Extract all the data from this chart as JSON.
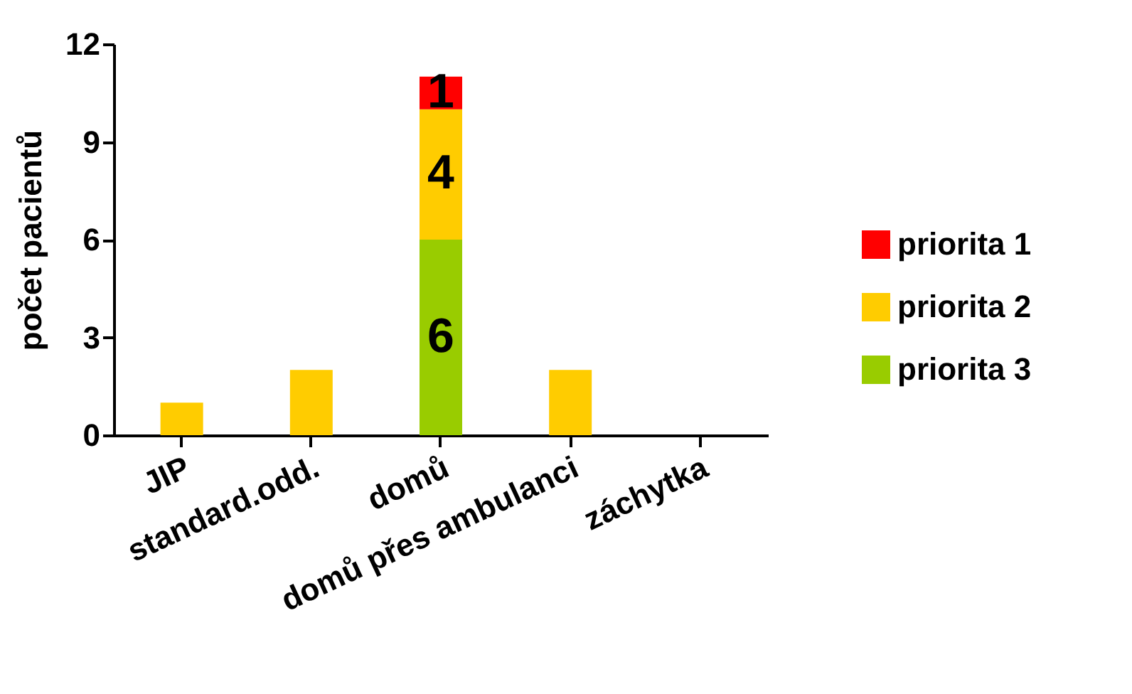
{
  "chart_data": {
    "type": "bar",
    "stacked": true,
    "ylabel": "počet pacientů",
    "categories": [
      "JIP",
      "standard.odd.",
      "domů",
      "domů přes ambulanci",
      "záchytka"
    ],
    "series": [
      {
        "name": "priorita 3",
        "color": "#99cc00",
        "values": [
          null,
          null,
          6,
          null,
          0
        ],
        "value_labels": [
          null,
          null,
          "6",
          null,
          null
        ]
      },
      {
        "name": "priorita 2",
        "color": "#ffcc00",
        "values": [
          1,
          2,
          4,
          2,
          null
        ],
        "value_labels": [
          null,
          null,
          "4",
          null,
          null
        ]
      },
      {
        "name": "priorita 1",
        "color": "#ff0000",
        "values": [
          null,
          null,
          1,
          null,
          null
        ],
        "value_labels": [
          null,
          null,
          "1",
          null,
          null
        ]
      }
    ],
    "ylim": [
      0,
      12
    ],
    "yticks": [
      0,
      3,
      6,
      9,
      12
    ],
    "grid": false,
    "legend": "right"
  }
}
